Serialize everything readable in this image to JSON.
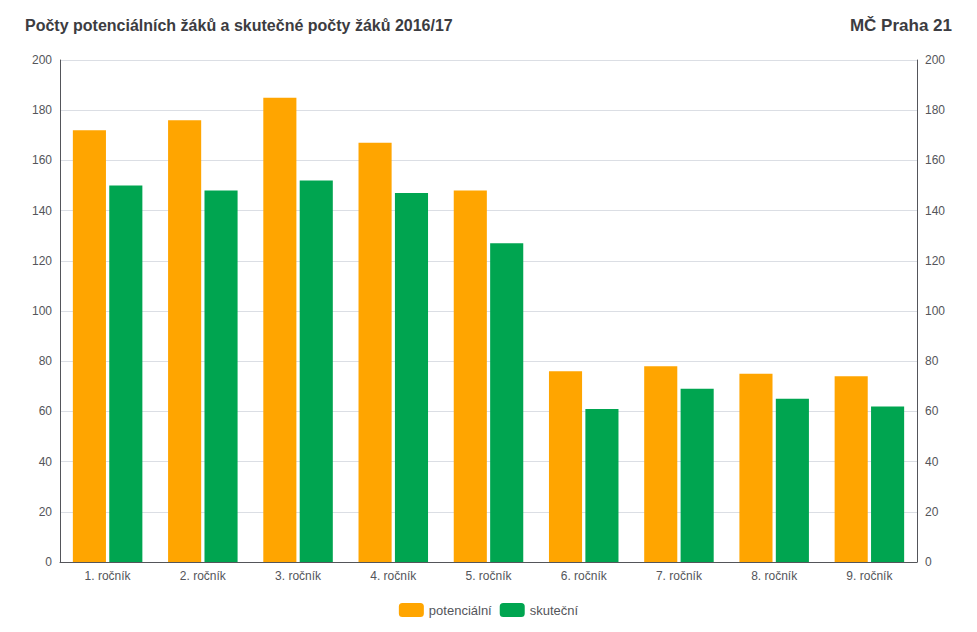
{
  "chart_data": {
    "type": "bar",
    "title": "Počty potenciálních žáků a skutečné počty žáků 2016/17",
    "subtitle": "MČ Praha 21",
    "categories": [
      "1. ročník",
      "2. ročník",
      "3. ročník",
      "4. ročník",
      "5. ročník",
      "6. ročník",
      "7. ročník",
      "8. ročník",
      "9. ročník"
    ],
    "series": [
      {
        "name": "potenciální",
        "color": "#FFA500",
        "values": [
          172,
          176,
          185,
          167,
          148,
          76,
          78,
          75,
          74
        ]
      },
      {
        "name": "skuteční",
        "color": "#00A550",
        "values": [
          150,
          148,
          152,
          147,
          127,
          61,
          69,
          65,
          62
        ]
      }
    ],
    "ylim": [
      0,
      200
    ],
    "yticks": [
      0,
      20,
      40,
      60,
      80,
      100,
      120,
      140,
      160,
      180,
      200
    ],
    "y2lim": [
      0,
      200
    ],
    "y2ticks": [
      0,
      20,
      40,
      60,
      80,
      100,
      120,
      140,
      160,
      180,
      200
    ],
    "grid": true,
    "legend": "bottom"
  }
}
